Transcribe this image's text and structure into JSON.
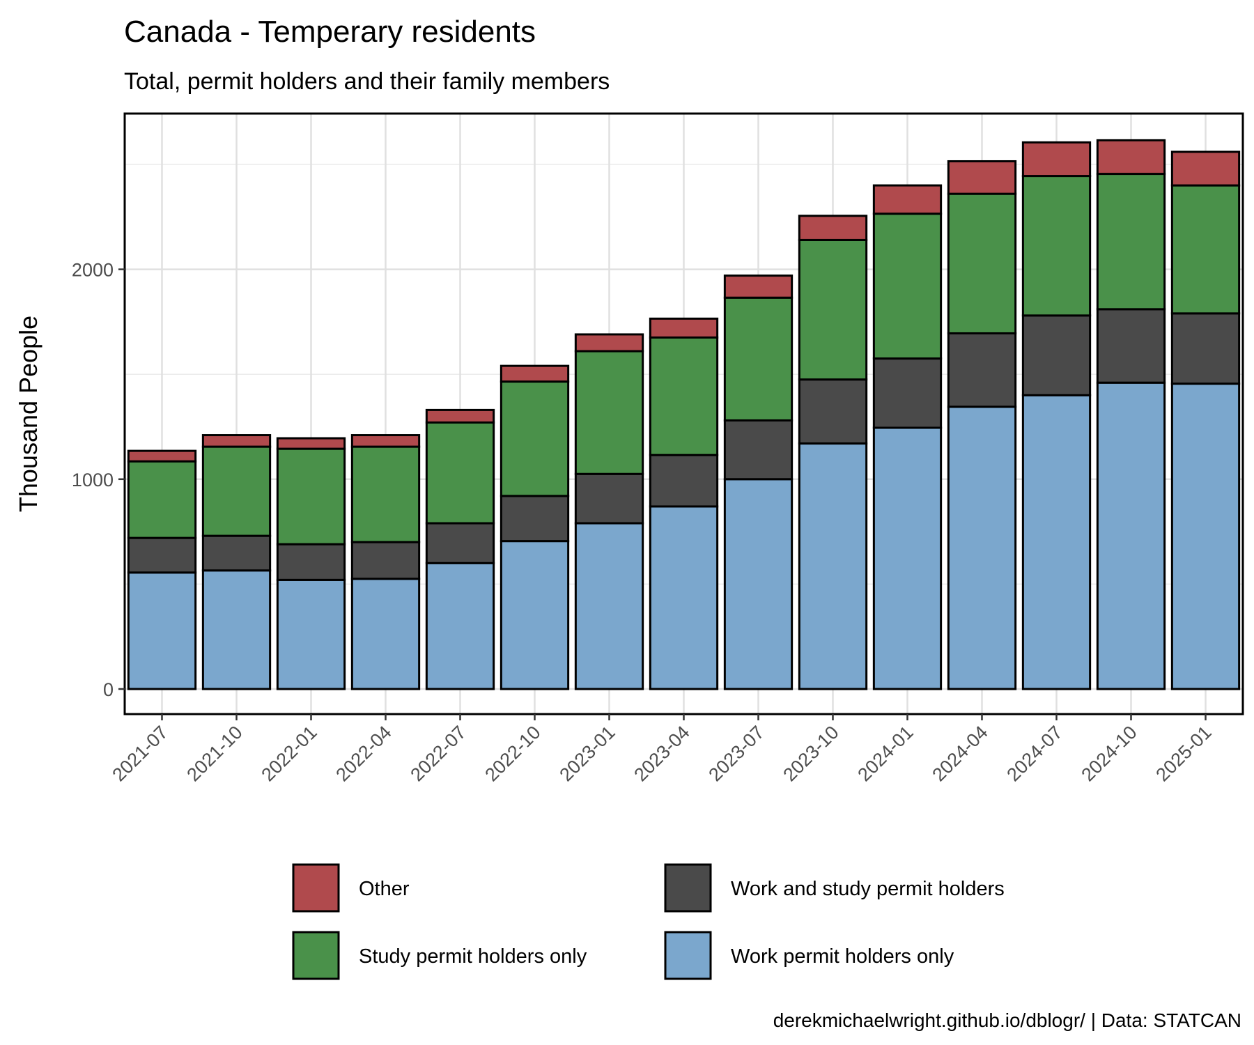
{
  "chart_data": {
    "type": "bar",
    "stacked": true,
    "title": "Canada - Temperary residents",
    "subtitle": "Total, permit holders and their family members",
    "xlabel": "",
    "ylabel": "Thousand People",
    "caption": "derekmichaelwright.github.io/dblogr/ | Data: STATCAN",
    "categories": [
      "2021-07",
      "2021-10",
      "2022-01",
      "2022-04",
      "2022-07",
      "2022-10",
      "2023-01",
      "2023-04",
      "2023-07",
      "2023-10",
      "2024-01",
      "2024-04",
      "2024-07",
      "2024-10",
      "2025-01"
    ],
    "y_ticks": [
      0,
      1000,
      2000
    ],
    "ylim": [
      -120,
      2750
    ],
    "grid": true,
    "legend_position": "bottom",
    "series": [
      {
        "name": "Work permit holders only",
        "color": "#7ba7cd",
        "values": [
          555,
          565,
          520,
          525,
          600,
          705,
          790,
          870,
          1000,
          1170,
          1245,
          1345,
          1400,
          1460,
          1455
        ]
      },
      {
        "name": "Work and study permit holders",
        "color": "#4a4a4a",
        "values": [
          165,
          165,
          170,
          175,
          190,
          215,
          235,
          245,
          280,
          305,
          330,
          350,
          380,
          350,
          335
        ]
      },
      {
        "name": "Study permit holders only",
        "color": "#4a914a",
        "values": [
          365,
          425,
          455,
          455,
          480,
          545,
          585,
          560,
          585,
          665,
          690,
          665,
          665,
          645,
          610
        ]
      },
      {
        "name": "Other",
        "color": "#b04a4d",
        "values": [
          50,
          55,
          50,
          55,
          60,
          75,
          80,
          90,
          105,
          115,
          135,
          155,
          160,
          160,
          160
        ]
      }
    ],
    "legend_items": [
      {
        "name": "Other",
        "color": "#b04a4d"
      },
      {
        "name": "Work and study permit holders",
        "color": "#4a4a4a"
      },
      {
        "name": "Study permit holders only",
        "color": "#4a914a"
      },
      {
        "name": "Work permit holders only",
        "color": "#7ba7cd"
      }
    ]
  }
}
